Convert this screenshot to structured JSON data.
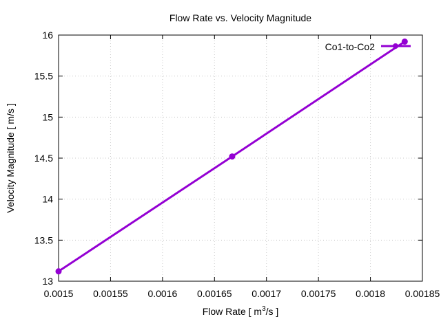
{
  "chart_data": {
    "type": "line",
    "title": "Flow Rate vs. Velocity Magnitude",
    "xlabel": "Flow Rate [ m",
    "xlabel_sup": "3",
    "xlabel_tail": "/s ]",
    "ylabel": "Velocity Magnitude [ m/s ]",
    "xlim": [
      0.0015,
      0.00185
    ],
    "ylim": [
      13,
      16
    ],
    "x_ticks": [
      "0.0015",
      "0.00155",
      "0.0016",
      "0.00165",
      "0.0017",
      "0.00175",
      "0.0018",
      "0.00185"
    ],
    "y_ticks": [
      "13",
      "13.5",
      "14",
      "14.5",
      "15",
      "15.5",
      "16"
    ],
    "grid": true,
    "legend_position": "top-right",
    "series": [
      {
        "name": "Co1-to-Co2",
        "color": "#9400d3",
        "points": [
          {
            "x": 0.0015,
            "y": 13.12
          },
          {
            "x": 0.001667,
            "y": 14.52
          },
          {
            "x": 0.001833,
            "y": 15.92
          }
        ]
      }
    ]
  }
}
